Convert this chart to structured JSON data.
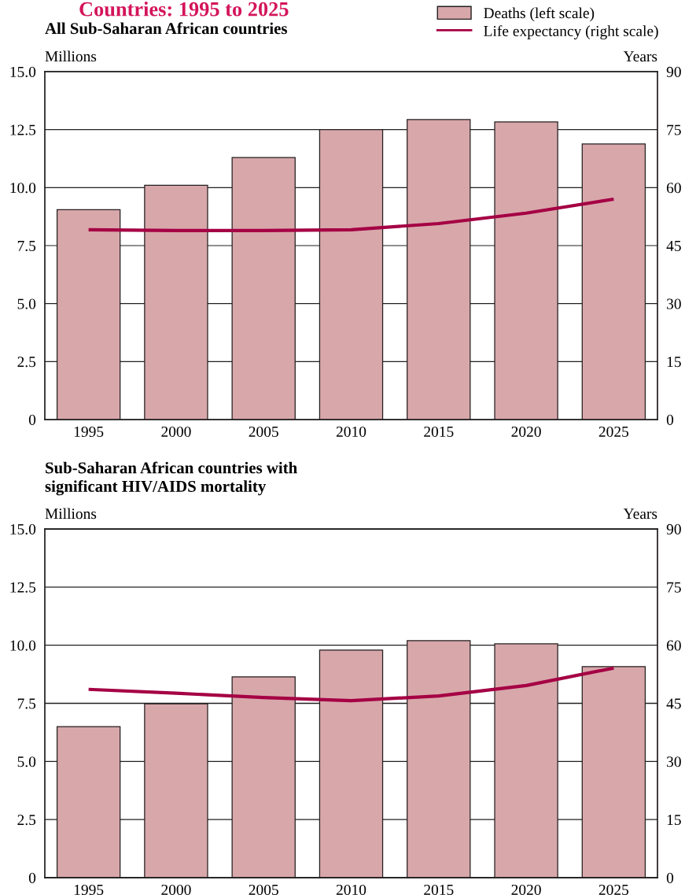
{
  "chart_data": [
    {
      "type": "bar",
      "title": "Countries: 1995 to 2025",
      "subtitle": "All Sub-Saharan African countries",
      "ylabel": "Millions",
      "y2label": "Years",
      "categories": [
        "1995",
        "2000",
        "2005",
        "2010",
        "2015",
        "2020",
        "2025"
      ],
      "series": [
        {
          "name": "Deaths (left scale)",
          "color": "#d8a7aa",
          "values": [
            9.05,
            10.1,
            11.3,
            12.5,
            12.93,
            12.83,
            11.88
          ]
        },
        {
          "name": "Life expectancy (right scale)",
          "type": "line",
          "axis": "y2",
          "color": "#a50044",
          "values": [
            49.1,
            48.9,
            48.9,
            49.1,
            50.7,
            53.4,
            57.0
          ]
        }
      ],
      "ylim": [
        0,
        15
      ],
      "yticks": [
        0,
        2.5,
        {
          "value": 5,
          "label": "5.0"
        },
        7.5,
        {
          "value": 10,
          "label": "10.0"
        },
        12.5,
        {
          "value": 15,
          "label": "15.0"
        }
      ],
      "y2lim": [
        0,
        90
      ],
      "y2ticks": [
        0,
        15,
        30,
        45,
        60,
        75,
        90
      ],
      "grid": "y",
      "legend": "top right"
    },
    {
      "type": "bar",
      "title": "Sub-Saharan African countries with\nsignificant HIV/AIDS mortality",
      "ylabel": "Millions",
      "y2label": "Years",
      "categories": [
        "1995",
        "2000",
        "2005",
        "2010",
        "2015",
        "2020",
        "2025"
      ],
      "series": [
        {
          "color": "#d8a7aa",
          "values": [
            6.5,
            7.48,
            8.64,
            9.79,
            10.2,
            10.06,
            9.08
          ]
        },
        {
          "type": "line",
          "axis": "y2",
          "color": "#a50044",
          "values": [
            48.6,
            47.6,
            46.5,
            45.7,
            46.9,
            49.6,
            54.1
          ]
        }
      ],
      "ylim": [
        0,
        15
      ],
      "yticks": [
        0,
        2.5,
        {
          "value": 5,
          "label": "5.0"
        },
        7.5,
        {
          "value": 10,
          "label": "10.0"
        },
        12.5,
        {
          "value": 15,
          "label": "15.0"
        }
      ],
      "y2lim": [
        0,
        90
      ],
      "y2ticks": [
        0,
        15,
        30,
        45,
        60,
        75,
        90
      ],
      "grid": "y"
    }
  ]
}
